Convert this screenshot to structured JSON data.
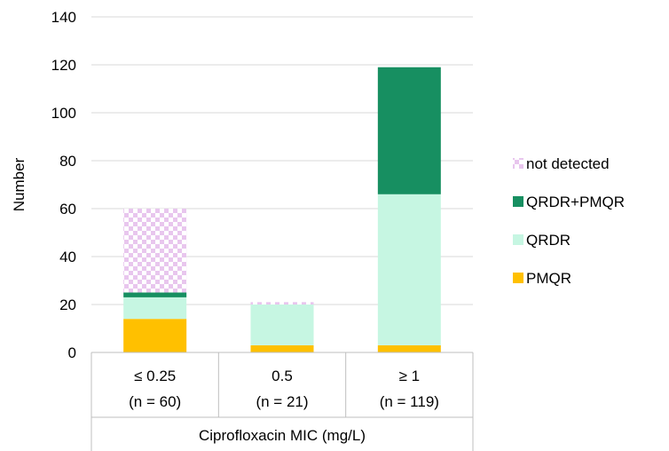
{
  "chart_data": {
    "type": "bar",
    "stacked": true,
    "categories": [
      {
        "line1": "≤ 0.25",
        "line2": "(n = 60)"
      },
      {
        "line1": "0.5",
        "line2": "(n = 21)"
      },
      {
        "line1": "≥ 1",
        "line2": "(n = 119)"
      }
    ],
    "series": [
      {
        "name": "PMQR",
        "color": "#FFC000",
        "pattern": "solid",
        "values": [
          14,
          3,
          3
        ]
      },
      {
        "name": "QRDR",
        "color": "#C6F6E2",
        "pattern": "solid",
        "values": [
          9,
          17,
          63
        ]
      },
      {
        "name": "QRDR+PMQR",
        "color": "#178F61",
        "pattern": "solid",
        "values": [
          2,
          0,
          53
        ]
      },
      {
        "name": "not detected",
        "color": "#E8C6EE",
        "pattern": "checker",
        "values": [
          35,
          1,
          0
        ]
      }
    ],
    "legend_order": [
      3,
      2,
      1,
      0
    ],
    "legend_position": "right",
    "xlabel": "Ciprofloxacin MIC (mg/L)",
    "ylabel": "Number",
    "ylim": [
      0,
      140
    ],
    "yticks": [
      0,
      20,
      40,
      60,
      80,
      100,
      120,
      140
    ],
    "grid": true,
    "gridline_color": "#D9D9D9"
  }
}
